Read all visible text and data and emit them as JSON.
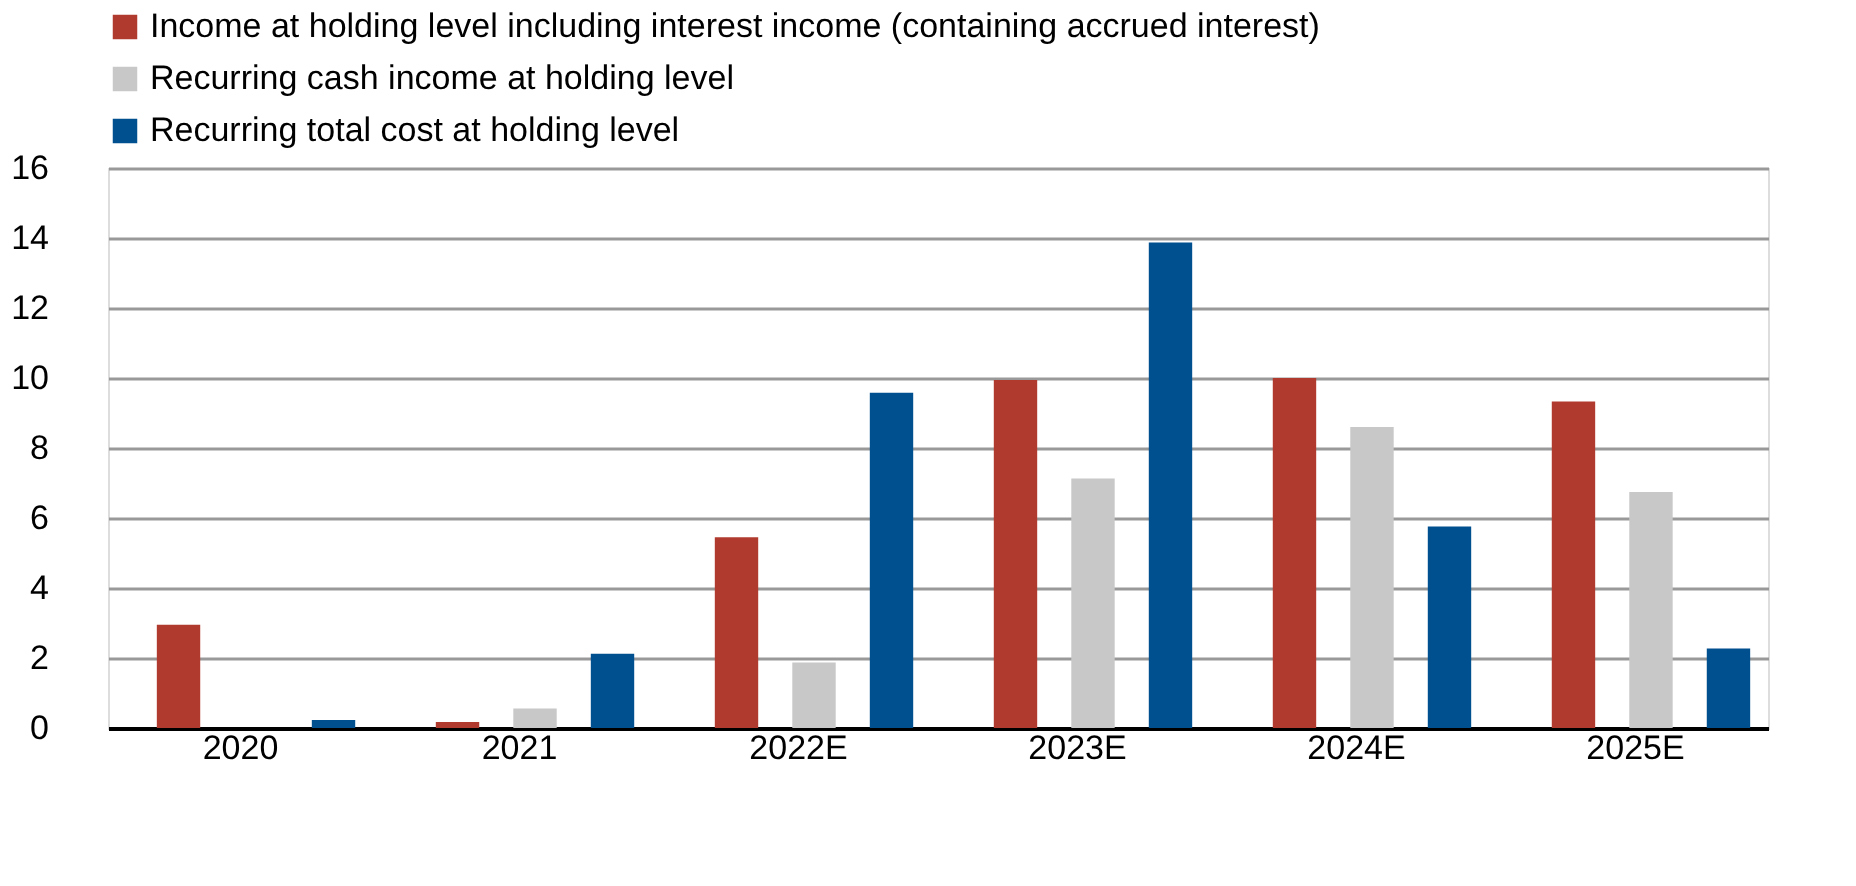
{
  "chart_data": {
    "type": "bar",
    "categories": [
      "2020",
      "2021",
      "2022E",
      "2023E",
      "2024E",
      "2025E"
    ],
    "series": [
      {
        "name": "Income at holding level including interest income (containing accrued interest)",
        "color": "#b03a2e",
        "values": [
          2.95,
          0.17,
          5.45,
          9.94,
          10.0,
          9.33
        ]
      },
      {
        "name": "Recurring cash income at holding level",
        "color": "#c8c8c8",
        "values": [
          null,
          0.56,
          1.87,
          7.13,
          8.6,
          6.74
        ]
      },
      {
        "name": "Recurring total cost at holding level",
        "color": "#004f8f",
        "values": [
          0.23,
          2.12,
          9.58,
          13.87,
          5.76,
          2.27
        ]
      }
    ],
    "ylim": [
      0,
      16
    ],
    "yticks": [
      0,
      2,
      4,
      6,
      8,
      10,
      12,
      14,
      16
    ],
    "grid": "y",
    "legend": "top left"
  }
}
